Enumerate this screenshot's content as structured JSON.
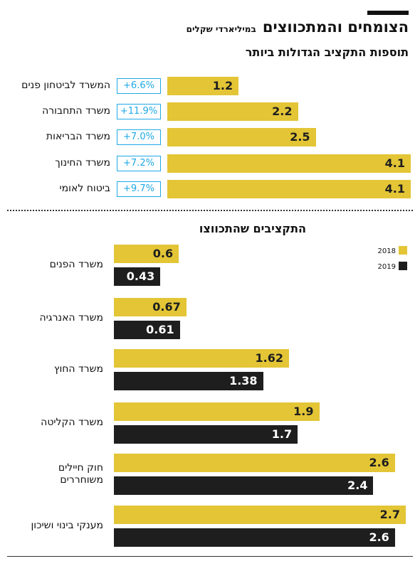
{
  "header": {
    "title": "הצומחים והמתכווצים",
    "unit": "במיליארדי שקלים",
    "subtitle": "תוספות התקציב הגדולות ביותר"
  },
  "section2": {
    "title": "התקציבים שהתכווצו"
  },
  "colors": {
    "accent": "#e3c536",
    "dark": "#1e1e1e",
    "badge": "#1fa8e6"
  },
  "chart_data": [
    {
      "type": "bar",
      "orientation": "horizontal",
      "title": "תוספות התקציב הגדולות ביותר",
      "categories": [
        "המשרד לביטחון פנים",
        "משרד התחבורה",
        "משרד הבריאות",
        "משרד החינוך",
        "ביטוח לאומי"
      ],
      "values": [
        1.2,
        2.2,
        2.5,
        4.1,
        4.1
      ],
      "value_labels": [
        "1.2",
        "2.2",
        "2.5",
        "4.1",
        "4.1"
      ],
      "change_labels": [
        "+6.6%",
        "+11.9%",
        "+7.0%",
        "+7.2%",
        "+9.7%"
      ],
      "xlim": [
        0,
        4.1
      ],
      "grid": false
    },
    {
      "type": "bar",
      "orientation": "horizontal",
      "title": "התקציבים שהתכווצו",
      "categories": [
        "משרד הפנים",
        "משרד האנרגיה",
        "משרד החוץ",
        "משרד הקליטה",
        "חוק חיילים משוחררים",
        "מענקי בינוי ושיכון"
      ],
      "series": [
        {
          "name": "2018",
          "values": [
            0.6,
            0.67,
            1.62,
            1.9,
            2.6,
            2.7
          ],
          "value_labels": [
            "0.6",
            "0.67",
            "1.62",
            "1.9",
            "2.6",
            "2.7"
          ]
        },
        {
          "name": "2019",
          "values": [
            0.43,
            0.61,
            1.38,
            1.7,
            2.4,
            2.6
          ],
          "value_labels": [
            "0.43",
            "0.61",
            "1.38",
            "1.7",
            "2.4",
            "2.6"
          ]
        }
      ],
      "legend": [
        "2018",
        "2019"
      ],
      "legend_position": "top-right",
      "xlim": [
        0,
        2.7
      ],
      "grid": false
    }
  ]
}
